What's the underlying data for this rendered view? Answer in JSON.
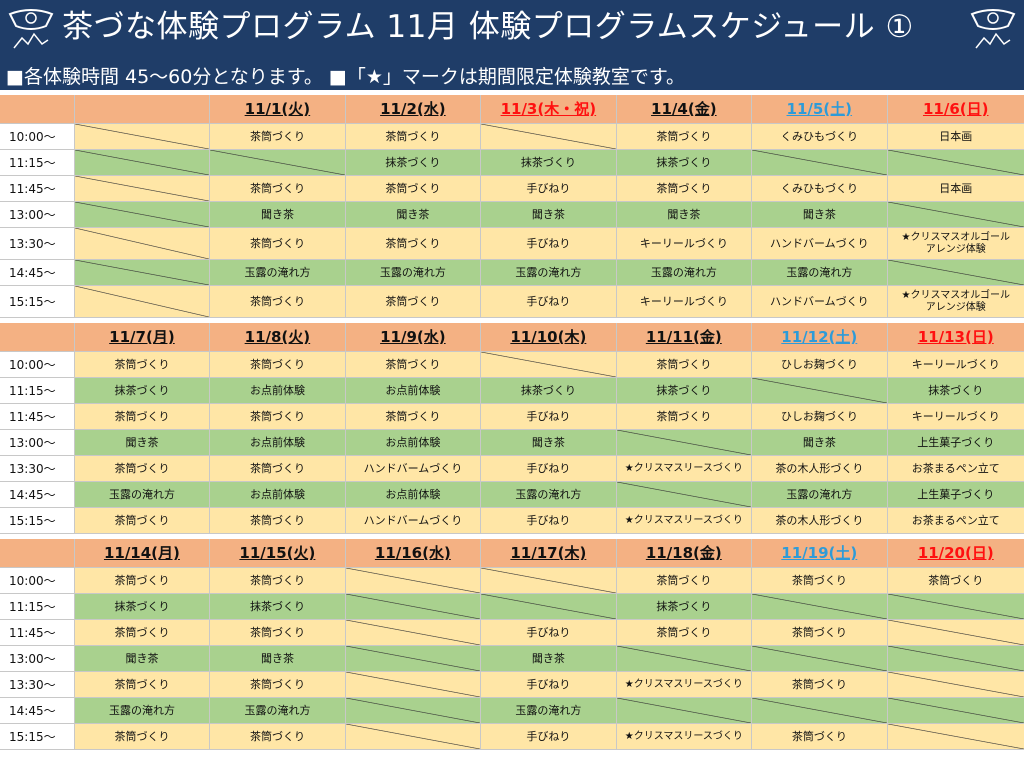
{
  "header": {
    "title": "茶づな体験プログラム 11月 体験プログラムスケジュール ①",
    "subtitle": "■各体験時間 45～60分となります。 ■「★」マークは期間限定体験教室です。"
  },
  "times": [
    "10:00～",
    "11:15～",
    "11:45～",
    "13:00～",
    "13:30～",
    "14:45～",
    "15:15～"
  ],
  "row_colors": [
    "y",
    "g",
    "y",
    "g",
    "y",
    "g",
    "y"
  ],
  "weeks": [
    {
      "dates": [
        {
          "label": "",
          "kind": "blank"
        },
        {
          "label": "11/1(火)",
          "kind": "weekday"
        },
        {
          "label": "11/2(水)",
          "kind": "weekday"
        },
        {
          "label": "11/3(木・祝)",
          "kind": "hol"
        },
        {
          "label": "11/4(金)",
          "kind": "weekday"
        },
        {
          "label": "11/5(土)",
          "kind": "sat"
        },
        {
          "label": "11/6(日)",
          "kind": "sun"
        }
      ],
      "rows": [
        [
          "",
          "茶筒づくり",
          "茶筒づくり",
          "",
          "茶筒づくり",
          "くみひもづくり",
          "日本画"
        ],
        [
          "",
          "",
          "抹茶づくり",
          "抹茶づくり",
          "抹茶づくり",
          "",
          ""
        ],
        [
          "",
          "茶筒づくり",
          "茶筒づくり",
          "手びねり",
          "茶筒づくり",
          "くみひもづくり",
          "日本画"
        ],
        [
          "",
          "聞き茶",
          "聞き茶",
          "聞き茶",
          "聞き茶",
          "聞き茶",
          ""
        ],
        [
          "",
          "茶筒づくり",
          "茶筒づくり",
          "手びねり",
          "キーリールづくり",
          "ハンドバームづくり",
          "★クリスマスオルゴール\nアレンジ体験"
        ],
        [
          "",
          "玉露の淹れ方",
          "玉露の淹れ方",
          "玉露の淹れ方",
          "玉露の淹れ方",
          "玉露の淹れ方",
          ""
        ],
        [
          "",
          "茶筒づくり",
          "茶筒づくり",
          "手びねり",
          "キーリールづくり",
          "ハンドバームづくり",
          "★クリスマスオルゴール\nアレンジ体験"
        ]
      ]
    },
    {
      "dates": [
        {
          "label": "11/7(月)",
          "kind": "weekday"
        },
        {
          "label": "11/8(火)",
          "kind": "weekday"
        },
        {
          "label": "11/9(水)",
          "kind": "weekday"
        },
        {
          "label": "11/10(木)",
          "kind": "weekday"
        },
        {
          "label": "11/11(金)",
          "kind": "weekday"
        },
        {
          "label": "11/12(土)",
          "kind": "sat"
        },
        {
          "label": "11/13(日)",
          "kind": "sun"
        }
      ],
      "rows": [
        [
          "茶筒づくり",
          "茶筒づくり",
          "茶筒づくり",
          "",
          "茶筒づくり",
          "ひしお麹づくり",
          "キーリールづくり"
        ],
        [
          "抹茶づくり",
          "お点前体験",
          "お点前体験",
          "抹茶づくり",
          "抹茶づくり",
          "",
          "抹茶づくり"
        ],
        [
          "茶筒づくり",
          "茶筒づくり",
          "茶筒づくり",
          "手びねり",
          "茶筒づくり",
          "ひしお麹づくり",
          "キーリールづくり"
        ],
        [
          "聞き茶",
          "お点前体験",
          "お点前体験",
          "聞き茶",
          "",
          "聞き茶",
          "上生菓子づくり"
        ],
        [
          "茶筒づくり",
          "茶筒づくり",
          "ハンドバームづくり",
          "手びねり",
          "★クリスマスリースづくり",
          "茶の木人形づくり",
          "お茶まるペン立て"
        ],
        [
          "玉露の淹れ方",
          "お点前体験",
          "お点前体験",
          "玉露の淹れ方",
          "",
          "玉露の淹れ方",
          "上生菓子づくり"
        ],
        [
          "茶筒づくり",
          "茶筒づくり",
          "ハンドバームづくり",
          "手びねり",
          "★クリスマスリースづくり",
          "茶の木人形づくり",
          "お茶まるペン立て"
        ]
      ]
    },
    {
      "dates": [
        {
          "label": "11/14(月)",
          "kind": "weekday"
        },
        {
          "label": "11/15(火)",
          "kind": "weekday"
        },
        {
          "label": "11/16(水)",
          "kind": "weekday"
        },
        {
          "label": "11/17(木)",
          "kind": "weekday"
        },
        {
          "label": "11/18(金)",
          "kind": "weekday"
        },
        {
          "label": "11/19(土)",
          "kind": "sat"
        },
        {
          "label": "11/20(日)",
          "kind": "sun"
        }
      ],
      "rows": [
        [
          "茶筒づくり",
          "茶筒づくり",
          "",
          "",
          "茶筒づくり",
          "茶筒づくり",
          "茶筒づくり"
        ],
        [
          "抹茶づくり",
          "抹茶づくり",
          "",
          "",
          "抹茶づくり",
          "",
          ""
        ],
        [
          "茶筒づくり",
          "茶筒づくり",
          "",
          "手びねり",
          "茶筒づくり",
          "茶筒づくり",
          ""
        ],
        [
          "聞き茶",
          "聞き茶",
          "",
          "聞き茶",
          "",
          "",
          ""
        ],
        [
          "茶筒づくり",
          "茶筒づくり",
          "",
          "手びねり",
          "★クリスマスリースづくり",
          "茶筒づくり",
          ""
        ],
        [
          "玉露の淹れ方",
          "玉露の淹れ方",
          "",
          "玉露の淹れ方",
          "",
          "",
          ""
        ],
        [
          "茶筒づくり",
          "茶筒づくり",
          "",
          "手びねり",
          "★クリスマスリースづくり",
          "茶筒づくり",
          ""
        ]
      ]
    }
  ]
}
